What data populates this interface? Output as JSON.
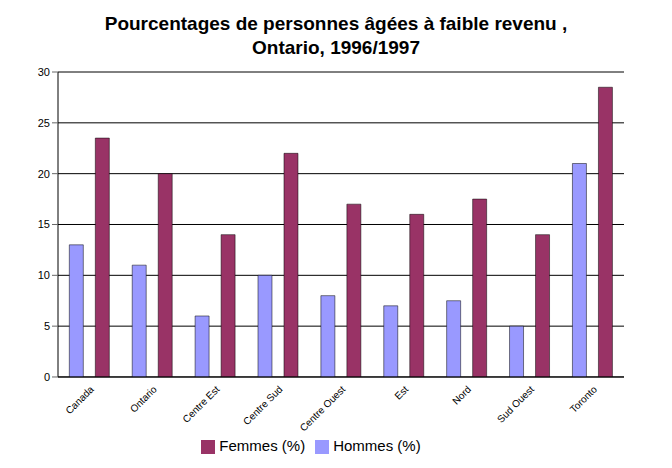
{
  "chart_data": {
    "type": "bar",
    "title": "Pourcentages de personnes âgées à faible revenu , Ontario, 1996/1997",
    "categories": [
      "Canada",
      "Ontario",
      "Centre Est",
      "Centre Sud",
      "Centre Ouest",
      "Est",
      "Nord",
      "Sud Ouest",
      "Toronto"
    ],
    "series": [
      {
        "name": "Hommes (%)",
        "color": "#9999ff",
        "values": [
          13,
          11,
          6,
          10,
          8,
          7,
          7.5,
          5,
          21
        ]
      },
      {
        "name": "Femmes (%)",
        "color": "#993366",
        "values": [
          23.5,
          20,
          14,
          22,
          17,
          16,
          17.5,
          14,
          28.5
        ]
      }
    ],
    "ylim": [
      0,
      30
    ],
    "yticks": [
      0,
      5,
      10,
      15,
      20,
      25,
      30
    ],
    "grid": true,
    "legend": "bottom"
  }
}
